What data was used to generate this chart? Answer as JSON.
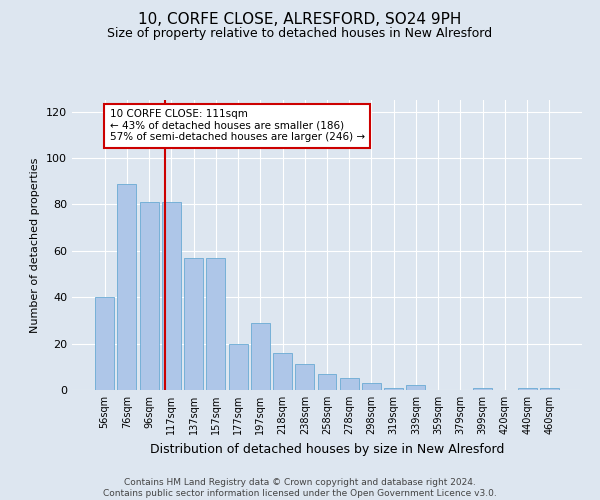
{
  "title": "10, CORFE CLOSE, ALRESFORD, SO24 9PH",
  "subtitle": "Size of property relative to detached houses in New Alresford",
  "xlabel": "Distribution of detached houses by size in New Alresford",
  "ylabel": "Number of detached properties",
  "footnote": "Contains HM Land Registry data © Crown copyright and database right 2024.\nContains public sector information licensed under the Open Government Licence v3.0.",
  "categories": [
    "56sqm",
    "76sqm",
    "96sqm",
    "117sqm",
    "137sqm",
    "157sqm",
    "177sqm",
    "197sqm",
    "218sqm",
    "238sqm",
    "258sqm",
    "278sqm",
    "298sqm",
    "319sqm",
    "339sqm",
    "359sqm",
    "379sqm",
    "399sqm",
    "420sqm",
    "440sqm",
    "460sqm"
  ],
  "values": [
    40,
    89,
    81,
    81,
    57,
    57,
    20,
    29,
    16,
    11,
    7,
    5,
    3,
    1,
    2,
    0,
    0,
    1,
    0,
    1,
    1
  ],
  "bar_color": "#aec6e8",
  "bar_edge_color": "#6aaad4",
  "property_line_color": "#cc0000",
  "annotation_text": "10 CORFE CLOSE: 111sqm\n← 43% of detached houses are smaller (186)\n57% of semi-detached houses are larger (246) →",
  "annotation_box_color": "#ffffff",
  "annotation_box_edge": "#cc0000",
  "ylim": [
    0,
    125
  ],
  "yticks": [
    0,
    20,
    40,
    60,
    80,
    100,
    120
  ],
  "bg_color": "#dde6f0",
  "plot_bg_color": "#dde6f0",
  "grid_color": "#ffffff",
  "prop_line_xidx": 2.72
}
